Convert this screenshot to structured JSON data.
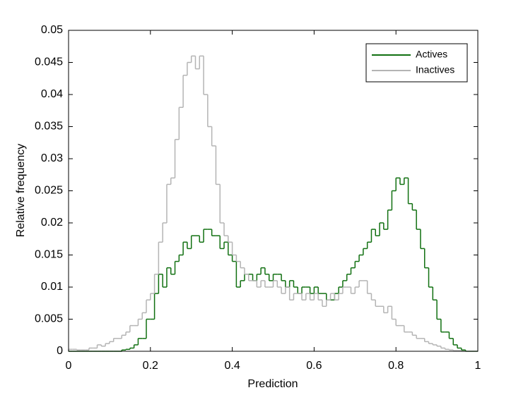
{
  "chart_data": {
    "type": "histogram",
    "xlabel": "Prediction",
    "ylabel": "Relative frequency",
    "bins": [
      0,
      0.01,
      0.02,
      0.03,
      0.04,
      0.05,
      0.06,
      0.07,
      0.08,
      0.09,
      0.1,
      0.11,
      0.12,
      0.13,
      0.14,
      0.15,
      0.16,
      0.17,
      0.18,
      0.19,
      0.2,
      0.21,
      0.22,
      0.23,
      0.24,
      0.25,
      0.26,
      0.27,
      0.28,
      0.29,
      0.3,
      0.31,
      0.32,
      0.33,
      0.34,
      0.35,
      0.36,
      0.37,
      0.38,
      0.39,
      0.4,
      0.41,
      0.42,
      0.43,
      0.44,
      0.45,
      0.46,
      0.47,
      0.48,
      0.49,
      0.5,
      0.51,
      0.52,
      0.53,
      0.54,
      0.55,
      0.56,
      0.57,
      0.58,
      0.59,
      0.6,
      0.61,
      0.62,
      0.63,
      0.64,
      0.65,
      0.66,
      0.67,
      0.68,
      0.69,
      0.7,
      0.71,
      0.72,
      0.73,
      0.74,
      0.75,
      0.76,
      0.77,
      0.78,
      0.79,
      0.8,
      0.81,
      0.82,
      0.83,
      0.84,
      0.85,
      0.86,
      0.87,
      0.88,
      0.89,
      0.9,
      0.91,
      0.92,
      0.93,
      0.94,
      0.95,
      0.96,
      0.97,
      0.98,
      0.99,
      1
    ],
    "series": [
      {
        "name": "Actives",
        "color": "#117011",
        "values": [
          0,
          0,
          0,
          0,
          0,
          0,
          0,
          0,
          0,
          0,
          0,
          0,
          0,
          0.0002,
          0.0003,
          0.0005,
          0.001,
          0.002,
          0.002,
          0.005,
          0.005,
          0.009,
          0.012,
          0.01,
          0.013,
          0.012,
          0.014,
          0.015,
          0.017,
          0.016,
          0.018,
          0.018,
          0.017,
          0.019,
          0.019,
          0.018,
          0.018,
          0.016,
          0.017,
          0.015,
          0.014,
          0.01,
          0.011,
          0.012,
          0.012,
          0.011,
          0.012,
          0.013,
          0.012,
          0.011,
          0.012,
          0.012,
          0.011,
          0.01,
          0.011,
          0.01,
          0.009,
          0.01,
          0.01,
          0.009,
          0.01,
          0.009,
          0.009,
          0.008,
          0.008,
          0.009,
          0.01,
          0.011,
          0.012,
          0.013,
          0.014,
          0.015,
          0.016,
          0.017,
          0.019,
          0.018,
          0.02,
          0.019,
          0.022,
          0.025,
          0.027,
          0.026,
          0.027,
          0.023,
          0.022,
          0.019,
          0.016,
          0.013,
          0.01,
          0.008,
          0.005,
          0.003,
          0.003,
          0.002,
          0.001,
          0.0005,
          0.0002,
          0,
          0,
          0
        ]
      },
      {
        "name": "Inactives",
        "color": "#b4b4b4",
        "values": [
          0.0003,
          0.0003,
          0.0002,
          0.0002,
          0.0002,
          0.0005,
          0.0005,
          0.001,
          0.0008,
          0.0012,
          0.0015,
          0.002,
          0.002,
          0.0025,
          0.003,
          0.004,
          0.004,
          0.005,
          0.006,
          0.008,
          0.009,
          0.012,
          0.017,
          0.02,
          0.026,
          0.027,
          0.033,
          0.038,
          0.043,
          0.045,
          0.046,
          0.044,
          0.046,
          0.04,
          0.035,
          0.032,
          0.026,
          0.02,
          0.018,
          0.017,
          0.015,
          0.014,
          0.013,
          0.012,
          0.011,
          0.011,
          0.01,
          0.011,
          0.01,
          0.01,
          0.011,
          0.01,
          0.009,
          0.01,
          0.008,
          0.009,
          0.009,
          0.008,
          0.009,
          0.008,
          0.009,
          0.008,
          0.007,
          0.008,
          0.009,
          0.008,
          0.009,
          0.01,
          0.01,
          0.009,
          0.01,
          0.011,
          0.011,
          0.009,
          0.008,
          0.007,
          0.007,
          0.006,
          0.007,
          0.005,
          0.004,
          0.004,
          0.003,
          0.003,
          0.0025,
          0.002,
          0.002,
          0.0015,
          0.0012,
          0.001,
          0.0008,
          0.0005,
          0.0003,
          0.0002,
          0.0001,
          0.0001,
          0,
          0,
          0,
          0
        ]
      }
    ],
    "xlim": [
      0,
      1
    ],
    "xticks": [
      0,
      0.2,
      0.4,
      0.6,
      0.8,
      1
    ],
    "ylim": [
      0,
      0.05
    ],
    "yticks": [
      0,
      0.005,
      0.01,
      0.015,
      0.02,
      0.025,
      0.03,
      0.035,
      0.04,
      0.045,
      0.05
    ],
    "legend": "upper right"
  }
}
